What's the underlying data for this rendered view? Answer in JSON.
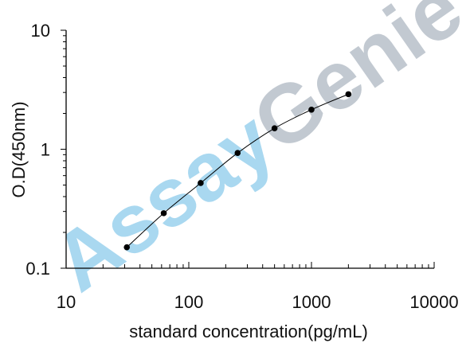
{
  "chart_data": {
    "type": "line",
    "title": "",
    "xlabel": "standard concentration(pg/mL)",
    "ylabel": "O.D(450nm)",
    "xscale": "log",
    "yscale": "log",
    "xlim": [
      10,
      10000
    ],
    "ylim": [
      0.1,
      10
    ],
    "x_ticks": [
      {
        "value": 10,
        "label": "10"
      },
      {
        "value": 100,
        "label": "100"
      },
      {
        "value": 1000,
        "label": "1000"
      },
      {
        "value": 10000,
        "label": "10000"
      }
    ],
    "y_ticks": [
      {
        "value": 0.1,
        "label": "0.1"
      },
      {
        "value": 1,
        "label": "1"
      },
      {
        "value": 10,
        "label": "10"
      }
    ],
    "grid": false,
    "legend": false,
    "series": [
      {
        "x": [
          31.25,
          62.5,
          125,
          250,
          500,
          1000,
          2000
        ],
        "y": [
          0.15,
          0.29,
          0.52,
          0.93,
          1.5,
          2.15,
          2.9
        ],
        "color": "#000000",
        "marker": "circle",
        "smooth": true
      }
    ],
    "watermark": {
      "first": "Assay",
      "second": "Genie",
      "first_color": "#a9d8f0",
      "second_color": "#c2c9d1"
    }
  }
}
